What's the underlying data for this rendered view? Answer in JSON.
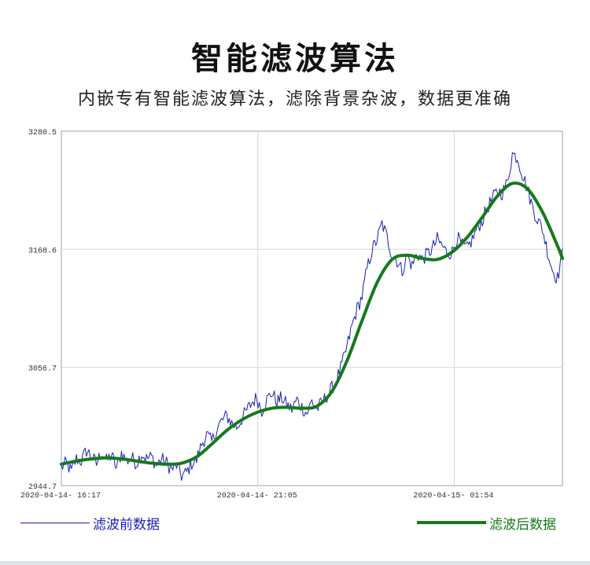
{
  "title": "智能滤波算法",
  "subtitle": "内嵌专有智能滤波算法，滤除背景杂波，数据更准确",
  "chart_data": {
    "type": "line",
    "title": "",
    "xlabel": "",
    "ylabel": "",
    "ylim": [
      2944.7,
      3280.5
    ],
    "yticks": [
      "3280.5",
      "3168.6",
      "3056.7",
      "2944.7"
    ],
    "xlim": [
      0,
      100
    ],
    "xtick_positions": [
      0,
      39.2,
      78.4
    ],
    "xticks": [
      "2020-04-14- 16:17",
      "2020-04-14- 21:05",
      "2020-04-15- 01:54"
    ],
    "grid": true,
    "legend_placement": "bottom",
    "series": [
      {
        "name": "滤波前数据",
        "color": "#1a1fb8",
        "x": [
          0,
          1,
          2,
          3,
          4,
          5,
          6,
          7,
          8,
          9,
          10,
          11,
          12,
          13,
          14,
          15,
          16,
          17,
          18,
          19,
          20,
          21,
          22,
          23,
          24,
          25,
          26,
          27,
          28,
          29,
          30,
          31,
          32,
          33,
          34,
          35,
          36,
          37,
          38,
          39,
          40,
          41,
          42,
          43,
          44,
          45,
          46,
          47,
          48,
          49,
          50,
          51,
          52,
          53,
          54,
          55,
          56,
          57,
          58,
          59,
          60,
          61,
          62,
          63,
          64,
          65,
          66,
          67,
          68,
          69,
          70,
          71,
          72,
          73,
          74,
          75,
          76,
          77,
          78,
          79,
          80,
          81,
          82,
          83,
          84,
          85,
          86,
          87,
          88,
          89,
          90,
          91,
          92,
          93,
          94,
          95,
          96,
          97,
          98,
          99,
          100
        ],
        "y": [
          2962,
          2966,
          2958,
          2970,
          2968,
          2978,
          2973,
          2965,
          2977,
          2968,
          2974,
          2961,
          2976,
          2968,
          2971,
          2966,
          2975,
          2970,
          2972,
          2964,
          2970,
          2966,
          2960,
          2964,
          2954,
          2957,
          2966,
          2969,
          2984,
          2993,
          2986,
          2998,
          3006,
          3011,
          3004,
          3000,
          3008,
          3016,
          3023,
          3028,
          3016,
          3026,
          3033,
          3024,
          3028,
          3021,
          3017,
          3026,
          3019,
          3013,
          3025,
          3017,
          3023,
          3030,
          3037,
          3046,
          3059,
          3076,
          3096,
          3112,
          3124,
          3150,
          3168,
          3178,
          3193,
          3180,
          3163,
          3158,
          3148,
          3162,
          3153,
          3165,
          3159,
          3164,
          3169,
          3178,
          3172,
          3165,
          3166,
          3180,
          3172,
          3169,
          3178,
          3189,
          3196,
          3208,
          3216,
          3224,
          3222,
          3232,
          3259,
          3256,
          3240,
          3226,
          3209,
          3197,
          3188,
          3167,
          3149,
          3141,
          3165
        ],
        "step": 0.25,
        "jitter": 7
      },
      {
        "name": "滤波后数据",
        "color": "#157a1a",
        "x": [
          0,
          3,
          6,
          9,
          12,
          15,
          18,
          21,
          24,
          27,
          30,
          33,
          36,
          39,
          42,
          45,
          48,
          51,
          54,
          57,
          60,
          63,
          66,
          69,
          72,
          75,
          78,
          81,
          84,
          87,
          90,
          93,
          96,
          99,
          100
        ],
        "y": [
          2965,
          2968,
          2970,
          2971,
          2970,
          2968,
          2966,
          2965,
          2966,
          2972,
          2984,
          2997,
          3007,
          3014,
          3018,
          3019,
          3018,
          3020,
          3034,
          3063,
          3101,
          3137,
          3159,
          3163,
          3160,
          3159,
          3166,
          3180,
          3199,
          3219,
          3231,
          3226,
          3204,
          3172,
          3160
        ]
      }
    ]
  },
  "legend": {
    "raw_label": "滤波前数据",
    "filtered_label": "滤波后数据"
  }
}
